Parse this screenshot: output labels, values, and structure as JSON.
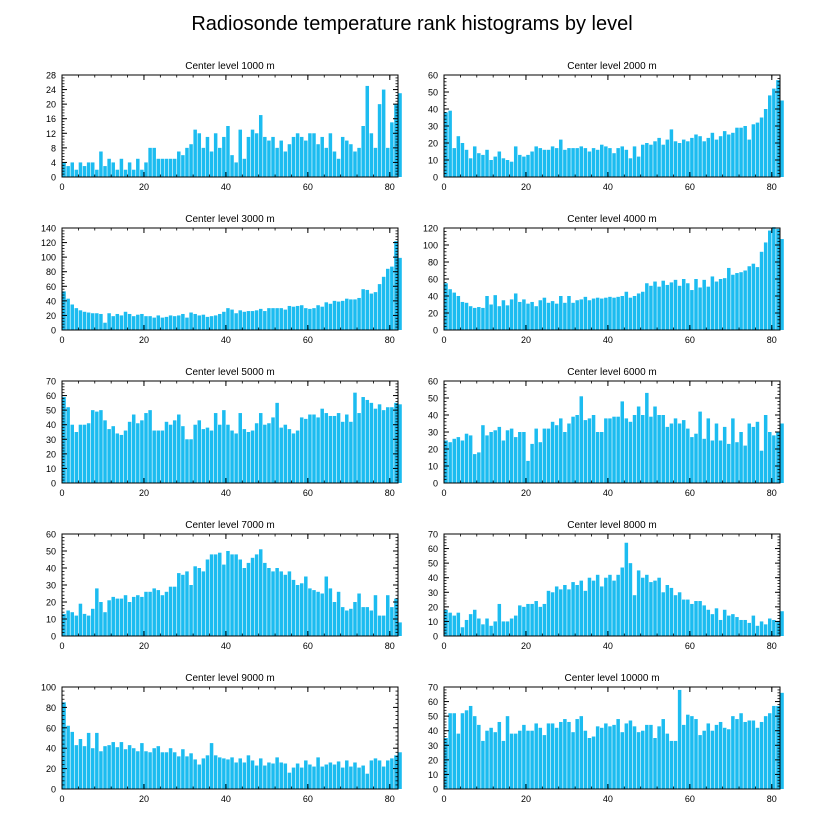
{
  "title": "Radiosonde temperature rank histograms by level",
  "colors": {
    "bar": "#1cbcf0",
    "axis": "#000000"
  },
  "chart_data": [
    {
      "type": "bar",
      "title": "Center level 1000 m",
      "xlim": [
        0,
        82
      ],
      "ylim": [
        0,
        28
      ],
      "xticks": [
        0,
        20,
        40,
        60,
        80
      ],
      "yticks": [
        0,
        4,
        8,
        12,
        16,
        20,
        24,
        28
      ],
      "values": [
        4,
        3,
        4,
        2,
        4,
        3,
        4,
        4,
        2,
        7,
        3,
        5,
        4,
        2,
        5,
        2,
        4,
        2,
        5,
        2,
        4,
        8,
        8,
        5,
        5,
        5,
        5,
        5,
        7,
        6,
        8,
        9,
        13,
        12,
        8,
        11,
        7,
        12,
        8,
        11,
        14,
        6,
        4,
        13,
        5,
        11,
        13,
        12,
        17,
        11,
        10,
        11,
        8,
        10,
        7,
        9,
        11,
        12,
        11,
        10,
        12,
        12,
        9,
        11,
        8,
        12,
        7,
        5,
        11,
        10,
        9,
        7,
        8,
        14,
        25,
        12,
        8,
        20,
        24,
        8,
        15,
        20,
        23
      ]
    },
    {
      "type": "bar",
      "title": "Center level 2000 m",
      "xlim": [
        0,
        82
      ],
      "ylim": [
        0,
        60
      ],
      "xticks": [
        0,
        20,
        40,
        60,
        80
      ],
      "yticks": [
        0,
        10,
        20,
        30,
        40,
        50,
        60
      ],
      "values": [
        38,
        39,
        17,
        24,
        20,
        16,
        11,
        18,
        14,
        13,
        16,
        10,
        12,
        15,
        11,
        10,
        9,
        18,
        13,
        12,
        13,
        15,
        18,
        17,
        16,
        16,
        18,
        17,
        22,
        16,
        17,
        17,
        17,
        18,
        17,
        15,
        17,
        16,
        19,
        18,
        17,
        14,
        17,
        18,
        16,
        11,
        18,
        12,
        19,
        20,
        19,
        21,
        23,
        19,
        22,
        28,
        21,
        20,
        22,
        21,
        23,
        25,
        24,
        21,
        23,
        26,
        22,
        24,
        27,
        25,
        26,
        29,
        29,
        30,
        22,
        31,
        32,
        35,
        40,
        48,
        52,
        57,
        45
      ]
    },
    {
      "type": "bar",
      "title": "Center level 3000 m",
      "xlim": [
        0,
        82
      ],
      "ylim": [
        0,
        140
      ],
      "xticks": [
        0,
        20,
        40,
        60,
        80
      ],
      "yticks": [
        0,
        20,
        40,
        60,
        80,
        100,
        120,
        140
      ],
      "values": [
        53,
        43,
        35,
        30,
        27,
        25,
        24,
        23,
        23,
        22,
        10,
        23,
        19,
        22,
        20,
        25,
        22,
        19,
        21,
        22,
        19,
        19,
        17,
        20,
        17,
        18,
        20,
        19,
        20,
        22,
        17,
        24,
        22,
        20,
        21,
        18,
        19,
        20,
        22,
        25,
        30,
        28,
        23,
        27,
        25,
        26,
        26,
        27,
        29,
        26,
        30,
        30,
        30,
        30,
        28,
        33,
        32,
        33,
        34,
        30,
        29,
        30,
        34,
        32,
        38,
        36,
        40,
        39,
        40,
        43,
        42,
        42,
        44,
        56,
        55,
        50,
        52,
        63,
        73,
        84,
        87,
        122,
        99
      ]
    },
    {
      "type": "bar",
      "title": "Center level 4000 m",
      "xlim": [
        0,
        82
      ],
      "ylim": [
        0,
        120
      ],
      "xticks": [
        0,
        20,
        40,
        60,
        80
      ],
      "yticks": [
        0,
        20,
        40,
        60,
        80,
        100,
        120
      ],
      "values": [
        55,
        48,
        44,
        40,
        33,
        32,
        28,
        26,
        27,
        26,
        40,
        30,
        41,
        28,
        35,
        29,
        36,
        43,
        33,
        36,
        31,
        33,
        28,
        35,
        38,
        32,
        34,
        31,
        40,
        32,
        40,
        32,
        35,
        36,
        39,
        35,
        37,
        38,
        37,
        38,
        39,
        38,
        39,
        40,
        45,
        38,
        40,
        43,
        45,
        55,
        52,
        57,
        51,
        58,
        53,
        56,
        59,
        52,
        60,
        55,
        47,
        60,
        50,
        59,
        51,
        63,
        57,
        60,
        61,
        73,
        65,
        67,
        68,
        70,
        75,
        78,
        74,
        92,
        103,
        117,
        121,
        119,
        107
      ]
    },
    {
      "type": "bar",
      "title": "Center level 5000 m",
      "xlim": [
        0,
        82
      ],
      "ylim": [
        0,
        70
      ],
      "xticks": [
        0,
        20,
        40,
        60,
        80
      ],
      "yticks": [
        0,
        10,
        20,
        30,
        40,
        50,
        60,
        70
      ],
      "values": [
        59,
        52,
        40,
        35,
        40,
        40,
        41,
        50,
        49,
        50,
        43,
        37,
        39,
        34,
        33,
        36,
        42,
        47,
        41,
        43,
        48,
        50,
        36,
        36,
        36,
        42,
        40,
        43,
        47,
        39,
        30,
        30,
        40,
        43,
        37,
        38,
        36,
        48,
        40,
        50,
        40,
        36,
        34,
        48,
        37,
        35,
        36,
        41,
        48,
        40,
        41,
        45,
        55,
        38,
        40,
        37,
        34,
        36,
        45,
        44,
        47,
        47,
        45,
        51,
        48,
        46,
        46,
        48,
        42,
        47,
        42,
        62,
        48,
        59,
        57,
        55,
        51,
        54,
        50,
        52,
        52,
        55,
        54
      ]
    },
    {
      "type": "bar",
      "title": "Center level 6000 m",
      "xlim": [
        0,
        82
      ],
      "ylim": [
        0,
        60
      ],
      "xticks": [
        0,
        20,
        40,
        60,
        80
      ],
      "yticks": [
        0,
        10,
        20,
        30,
        40,
        50,
        60
      ],
      "values": [
        25,
        24,
        26,
        27,
        25,
        29,
        28,
        17,
        18,
        34,
        28,
        30,
        31,
        33,
        25,
        31,
        32,
        27,
        30,
        30,
        13,
        23,
        32,
        24,
        32,
        32,
        36,
        34,
        38,
        30,
        35,
        39,
        40,
        51,
        37,
        38,
        40,
        30,
        30,
        38,
        38,
        39,
        39,
        48,
        38,
        36,
        40,
        45,
        40,
        53,
        39,
        45,
        40,
        40,
        33,
        35,
        38,
        35,
        37,
        32,
        27,
        29,
        42,
        26,
        38,
        25,
        35,
        25,
        33,
        23,
        38,
        24,
        30,
        22,
        35,
        33,
        36,
        19,
        40,
        30,
        28,
        30,
        35
      ]
    },
    {
      "type": "bar",
      "title": "Center level 7000 m",
      "xlim": [
        0,
        82
      ],
      "ylim": [
        0,
        60
      ],
      "xticks": [
        0,
        20,
        40,
        60,
        80
      ],
      "yticks": [
        0,
        10,
        20,
        30,
        40,
        50,
        60
      ],
      "values": [
        13,
        15,
        14,
        12,
        19,
        13,
        12,
        16,
        28,
        20,
        14,
        21,
        23,
        22,
        22,
        24,
        20,
        23,
        24,
        23,
        26,
        26,
        28,
        27,
        24,
        26,
        29,
        29,
        37,
        36,
        38,
        30,
        41,
        40,
        38,
        45,
        48,
        48,
        49,
        42,
        50,
        48,
        48,
        45,
        40,
        43,
        46,
        48,
        51,
        43,
        40,
        38,
        40,
        38,
        36,
        38,
        33,
        30,
        31,
        35,
        28,
        27,
        26,
        25,
        35,
        28,
        20,
        26,
        17,
        15,
        16,
        20,
        25,
        17,
        17,
        15,
        24,
        12,
        12,
        24,
        17,
        22,
        8
      ]
    },
    {
      "type": "bar",
      "title": "Center level 8000 m",
      "xlim": [
        0,
        82
      ],
      "ylim": [
        0,
        70
      ],
      "xticks": [
        0,
        20,
        40,
        60,
        80
      ],
      "yticks": [
        0,
        10,
        20,
        30,
        40,
        50,
        60,
        70
      ],
      "values": [
        18,
        16,
        14,
        16,
        6,
        11,
        15,
        18,
        12,
        8,
        12,
        7,
        10,
        22,
        10,
        10,
        12,
        14,
        21,
        20,
        22,
        22,
        24,
        20,
        22,
        31,
        30,
        34,
        32,
        35,
        32,
        37,
        35,
        38,
        31,
        40,
        38,
        42,
        34,
        40,
        42,
        38,
        42,
        47,
        64,
        50,
        28,
        45,
        40,
        42,
        37,
        38,
        40,
        30,
        35,
        33,
        28,
        30,
        25,
        25,
        22,
        24,
        24,
        21,
        18,
        15,
        19,
        11,
        18,
        14,
        15,
        13,
        11,
        11,
        9,
        14,
        7,
        10,
        8,
        12,
        11,
        10,
        17
      ]
    },
    {
      "type": "bar",
      "title": "Center level 9000 m",
      "xlim": [
        0,
        82
      ],
      "ylim": [
        0,
        100
      ],
      "xticks": [
        0,
        20,
        40,
        60,
        80
      ],
      "yticks": [
        0,
        20,
        40,
        60,
        80,
        100
      ],
      "values": [
        85,
        62,
        56,
        43,
        49,
        42,
        55,
        40,
        55,
        37,
        42,
        43,
        46,
        41,
        46,
        39,
        43,
        40,
        37,
        45,
        37,
        36,
        40,
        42,
        36,
        36,
        40,
        36,
        32,
        39,
        32,
        35,
        29,
        24,
        30,
        33,
        45,
        33,
        31,
        30,
        29,
        31,
        26,
        30,
        26,
        33,
        28,
        23,
        30,
        23,
        26,
        25,
        31,
        26,
        25,
        16,
        21,
        25,
        21,
        28,
        24,
        22,
        31,
        22,
        24,
        26,
        24,
        27,
        21,
        28,
        22,
        26,
        21,
        23,
        15,
        28,
        30,
        28,
        22,
        28,
        30,
        33,
        36
      ]
    },
    {
      "type": "bar",
      "title": "Center level 10000 m",
      "xlim": [
        0,
        82
      ],
      "ylim": [
        0,
        70
      ],
      "xticks": [
        0,
        20,
        40,
        60,
        80
      ],
      "yticks": [
        0,
        10,
        20,
        30,
        40,
        50,
        60,
        70
      ],
      "values": [
        35,
        52,
        52,
        38,
        52,
        54,
        57,
        50,
        44,
        33,
        40,
        42,
        39,
        46,
        33,
        50,
        38,
        38,
        40,
        44,
        40,
        40,
        45,
        42,
        37,
        45,
        45,
        42,
        46,
        48,
        46,
        39,
        48,
        50,
        40,
        35,
        36,
        43,
        42,
        45,
        43,
        44,
        48,
        39,
        45,
        47,
        43,
        39,
        40,
        44,
        44,
        35,
        43,
        48,
        38,
        33,
        33,
        68,
        44,
        51,
        50,
        48,
        37,
        40,
        45,
        40,
        44,
        46,
        42,
        41,
        50,
        48,
        52,
        46,
        47,
        47,
        42,
        46,
        50,
        52,
        57,
        57,
        66
      ]
    }
  ]
}
